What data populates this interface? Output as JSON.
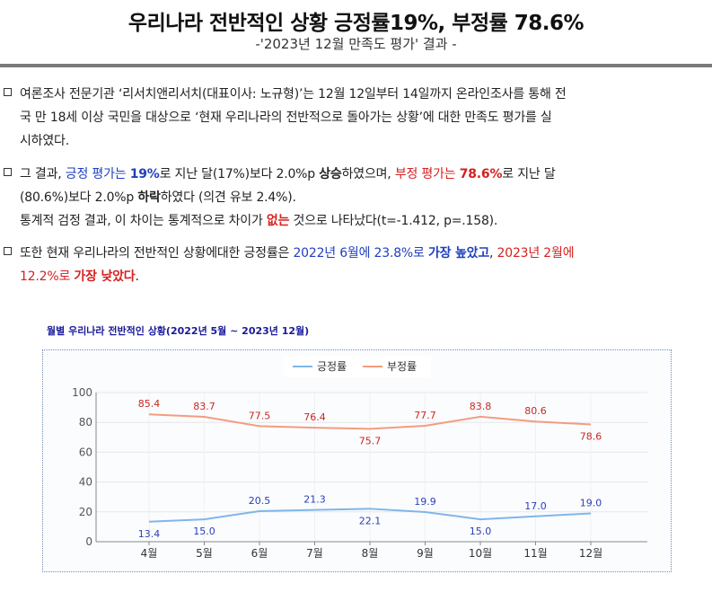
{
  "header": {
    "title": "우리나라 전반적인 상황 긍정률19%, 부정률 78.6%",
    "subtitle": "-'2023년 12월 만족도 평가' 결과 -"
  },
  "paragraphs": {
    "p1": {
      "line1": "여론조사 전문기관 ‘리서치앤리서치(대표이사: 노규형)’는 12월 12일부터 14일까지 온라인조사를 통해 전",
      "line2": "국 만 18세 이상 국민을 대상으로 ‘현재 우리나라의 전반적으로 돌아가는 상황’에 대한 만족도 평가를 실",
      "line3": "시하였다."
    },
    "p2": {
      "t1": "그 결과, ",
      "t2": "긍정 평가는 ",
      "t3": "19%",
      "t4": "로 지난 달(17%)보다 2.0%p ",
      "t5": "상승",
      "t6": "하였으며, ",
      "t7": "부정 평가는 ",
      "t8": "78.6%",
      "t9": "로 지난 달",
      "t10": "(80.6%)보다 2.0%p ",
      "t11": "하락",
      "t12": "하였다 (의견 유보 2.4%).",
      "t13": "통계적 검정 결과, 이 차이는 통계적으로 차이가 ",
      "t14": "없는",
      "t15": " 것으로 나타났다(t=-1.412, p=.158)."
    },
    "p3": {
      "t1": "또한 현재 우리나라의 전반적인 상황에대한 긍정률은 ",
      "t2": "2022년 6월에 23.8%로 ",
      "t3": "가장 높았고",
      "t4": ", ",
      "t5": "2023년 2월에",
      "t6": "12.2%로 ",
      "t7": "가장 낮았다",
      "t8": "."
    }
  },
  "chart_caption": "월별 우리나라 전반적인 상황(2022년 5월 ~ 2023년 12월)",
  "chart_data": {
    "type": "line",
    "categories": [
      "4월",
      "5월",
      "6월",
      "7월",
      "8월",
      "9월",
      "10월",
      "11월",
      "12월"
    ],
    "series": [
      {
        "name": "긍정률",
        "values": [
          13.4,
          15.0,
          20.5,
          21.3,
          22.1,
          19.9,
          15.0,
          17.0,
          19.0
        ],
        "color": "#7fb6ea",
        "label_color": "#2b3fb8"
      },
      {
        "name": "부정률",
        "values": [
          85.4,
          83.7,
          77.5,
          76.4,
          75.7,
          77.7,
          83.8,
          80.6,
          78.6
        ],
        "color": "#f39c80",
        "label_color": "#c8281f"
      }
    ],
    "ylim": [
      0,
      100
    ],
    "yticks": [
      0,
      20,
      40,
      60,
      80,
      100
    ],
    "grid": true,
    "legend": "top-center"
  }
}
